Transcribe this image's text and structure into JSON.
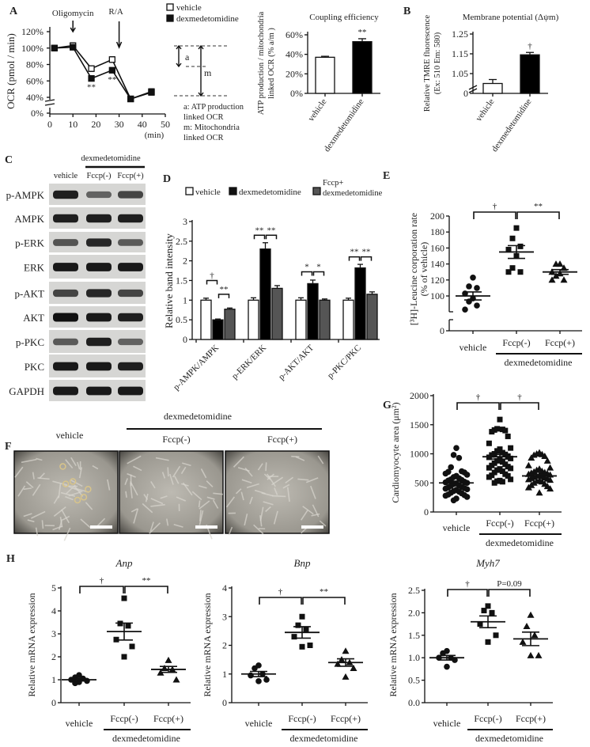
{
  "panel_labels": [
    "A",
    "B",
    "C",
    "D",
    "E",
    "F",
    "G",
    "H"
  ],
  "diagram_A": {
    "a": "a",
    "m": "m",
    "legend": [
      "a: ATP production",
      "linked OCR",
      "m: Mitochondria",
      "linked OCR"
    ]
  },
  "blot_C": {
    "group_label": "dexmedetomidine",
    "lanes": [
      "vehicle",
      "Fccp(-)",
      "Fccp(+)"
    ],
    "rows": [
      {
        "label": "p-AMPK",
        "intensity": [
          0.9,
          0.45,
          0.65
        ]
      },
      {
        "label": "AMPK",
        "intensity": [
          0.9,
          0.9,
          0.9
        ]
      },
      {
        "label": "p-ERK",
        "intensity": [
          0.55,
          0.85,
          0.5
        ]
      },
      {
        "label": "ERK",
        "intensity": [
          0.95,
          0.95,
          0.95
        ]
      },
      {
        "label": "p-AKT",
        "intensity": [
          0.65,
          0.85,
          0.65
        ]
      },
      {
        "label": "AKT",
        "intensity": [
          1.0,
          0.95,
          0.9
        ]
      },
      {
        "label": "p-PKC",
        "intensity": [
          0.5,
          0.9,
          0.45
        ]
      },
      {
        "label": "PKC",
        "intensity": [
          0.95,
          0.95,
          0.9
        ]
      },
      {
        "label": "GAPDH",
        "intensity": [
          0.95,
          0.95,
          0.95
        ]
      }
    ]
  },
  "micrographs_F": {
    "group_label": "dexmedetomidine",
    "panels": [
      "vehicle",
      "Fccp(-)",
      "Fccp(+)"
    ]
  },
  "chart_data": [
    {
      "type": "line",
      "ylabel": "OCR (pmol / min)",
      "xlabel": "(min)",
      "xlim": [
        0,
        50
      ],
      "ylim": [
        0,
        120
      ],
      "axis_break": "between 0% and 40%",
      "x_ticks": [
        "0",
        "10",
        "20",
        "30",
        "40",
        "50"
      ],
      "y_ticks": [
        "0%",
        "40%",
        "60%",
        "80%",
        "100%",
        "120%"
      ],
      "y_tick_values": [
        0,
        40,
        60,
        80,
        100,
        120
      ],
      "series": [
        {
          "name": "vehicle",
          "marker": "open-square",
          "x": [
            2,
            10,
            18,
            27,
            35,
            44
          ],
          "y": [
            100,
            103,
            75,
            86,
            36,
            47
          ],
          "err": [
            4,
            4,
            4,
            4,
            3,
            4
          ]
        },
        {
          "name": "dexmedetomidine",
          "marker": "filled-square",
          "x": [
            2,
            10,
            18,
            27,
            35,
            44
          ],
          "y": [
            100,
            101,
            63,
            73,
            36,
            46
          ],
          "err": [
            3,
            3,
            2,
            2,
            3,
            3
          ]
        }
      ],
      "annotations": [
        {
          "text": "Oligomycin",
          "x": 10
        },
        {
          "text": "R/A",
          "x": 30
        },
        {
          "text": "**",
          "x": 18,
          "y": 55
        },
        {
          "text": "**",
          "x": 27,
          "y": 64
        }
      ]
    },
    {
      "type": "bar",
      "title": "Coupling efficiency",
      "ylabel": [
        "ATP production / mitochondria",
        "linked OCR (% a/m )"
      ],
      "categories": [
        "vehicle",
        "dexmedetomidine"
      ],
      "values": [
        37,
        53
      ],
      "err": [
        1,
        3
      ],
      "colors": [
        "#ffffff",
        "#000000"
      ],
      "ylim": [
        0,
        60
      ],
      "y_ticks": [
        "0%",
        "20%",
        "40%",
        "60%"
      ],
      "y_tick_values": [
        0,
        20,
        40,
        60
      ],
      "annotations": [
        {
          "category": 1,
          "text": "**"
        }
      ]
    },
    {
      "type": "bar",
      "title": "Membrane potential (Δψm)",
      "ylabel": [
        "Relative TMRE fluorescence",
        "(Ex: 510  Em: 580)"
      ],
      "categories": [
        "vehicle",
        "dexmedetomidine"
      ],
      "values": [
        1.0,
        1.145
      ],
      "err": [
        0.02,
        0.012
      ],
      "colors": [
        "#ffffff",
        "#000000"
      ],
      "ylim": [
        0,
        1.25
      ],
      "axis_break": "between 0 and 1.05",
      "y_ticks": [
        "0",
        "1.05",
        "1.15",
        "1.25"
      ],
      "y_tick_values": [
        0,
        1.05,
        1.15,
        1.25
      ],
      "annotations": [
        {
          "category": 1,
          "text": "†"
        }
      ]
    },
    {
      "type": "bar",
      "ylabel": "Relative band intensity",
      "categories": [
        "p-AMPK/AMPK",
        "p-ERK/ERK",
        "p-AKT/AKT",
        "p-PKC/PKC"
      ],
      "legend": [
        "vehicle",
        "dexmedetomidine",
        "Fccp+",
        "dexmedetomidine"
      ],
      "series": [
        {
          "name": "vehicle",
          "color": "#ffffff",
          "values": [
            1.0,
            1.0,
            1.0,
            1.0
          ],
          "err": [
            0.05,
            0.06,
            0.06,
            0.05
          ]
        },
        {
          "name": "dexmedetomidine",
          "color": "#000000",
          "values": [
            0.5,
            2.3,
            1.42,
            1.82
          ],
          "err": [
            0.02,
            0.16,
            0.09,
            0.09
          ]
        },
        {
          "name": "Fccp+ dexmedetomidine",
          "color": "#555555",
          "values": [
            0.77,
            1.3,
            1.0,
            1.15
          ],
          "err": [
            0.03,
            0.07,
            0.03,
            0.06
          ]
        }
      ],
      "ylim": [
        0,
        3
      ],
      "y_ticks": [
        "0",
        "0.5",
        "1",
        "1.5",
        "2",
        "2.5",
        "3"
      ],
      "y_tick_values": [
        0,
        0.5,
        1,
        1.5,
        2,
        2.5,
        3
      ],
      "brackets": [
        {
          "category": 0,
          "from": 0,
          "to": 1,
          "level": 1.5,
          "text": "†"
        },
        {
          "category": 0,
          "from": 1,
          "to": 2,
          "level": 1.15,
          "text": "**"
        },
        {
          "category": 1,
          "from": 0,
          "to": 1,
          "level": 2.65,
          "text": "**"
        },
        {
          "category": 1,
          "from": 1,
          "to": 2,
          "level": 2.65,
          "text": "**"
        },
        {
          "category": 2,
          "from": 0,
          "to": 1,
          "level": 1.72,
          "text": "*"
        },
        {
          "category": 2,
          "from": 1,
          "to": 2,
          "level": 1.72,
          "text": "*"
        },
        {
          "category": 3,
          "from": 0,
          "to": 1,
          "level": 2.1,
          "text": "**"
        },
        {
          "category": 3,
          "from": 1,
          "to": 2,
          "level": 2.1,
          "text": "**"
        }
      ]
    },
    {
      "type": "scatter",
      "ylabel": [
        "[³H]-Leucine corporation rate",
        "(% of vehicle)"
      ],
      "categories": [
        "vehicle",
        "Fccp(-)",
        "Fccp(+)"
      ],
      "group_label": "dexmedetomidine",
      "markers": [
        "circle",
        "square",
        "triangle"
      ],
      "points": [
        [
          123,
          112,
          110,
          103,
          97,
          93,
          88,
          83
        ],
        [
          185,
          172,
          162,
          158,
          150,
          135,
          130,
          130
        ],
        [
          140,
          140,
          135,
          130,
          128,
          125,
          120,
          120
        ]
      ],
      "means": [
        100,
        155,
        130
      ],
      "sem": [
        5,
        8,
        3
      ],
      "ylim": [
        0,
        200
      ],
      "axis_break": "between 0 and 100",
      "y_ticks": [
        "0",
        "100",
        "120",
        "140",
        "160",
        "180",
        "200"
      ],
      "y_tick_values": [
        0,
        100,
        120,
        140,
        160,
        180,
        200
      ],
      "brackets": [
        {
          "from": 0,
          "to": 1,
          "text": "†"
        },
        {
          "from": 1,
          "to": 2,
          "text": "**"
        }
      ]
    },
    {
      "type": "scatter",
      "ylabel": "Cardiomyocyte area (μm²)",
      "categories": [
        "vehicle",
        "Fccp(-)",
        "Fccp(+)"
      ],
      "group_label": "dexmedetomidine",
      "markers": [
        "circle",
        "square",
        "triangle"
      ],
      "points": [
        [
          1100,
          980,
          930,
          770,
          700,
          690,
          680,
          660,
          640,
          620,
          600,
          580,
          560,
          550,
          540,
          520,
          510,
          500,
          490,
          480,
          460,
          450,
          430,
          420,
          410,
          400,
          390,
          380,
          360,
          350,
          330,
          320,
          300,
          290,
          280,
          260,
          230,
          200
        ],
        [
          1590,
          1430,
          1420,
          1410,
          1400,
          1380,
          1300,
          1180,
          1100,
          1080,
          1050,
          1020,
          1000,
          990,
          980,
          960,
          940,
          920,
          900,
          880,
          860,
          840,
          820,
          800,
          780,
          760,
          750,
          740,
          720,
          700,
          680,
          650,
          630,
          620,
          600,
          560,
          540,
          530,
          520,
          500
        ],
        [
          1020,
          1000,
          990,
          980,
          960,
          930,
          880,
          800,
          760,
          740,
          720,
          700,
          690,
          680,
          670,
          660,
          650,
          640,
          630,
          620,
          610,
          600,
          590,
          580,
          570,
          560,
          550,
          540,
          530,
          520,
          500,
          480,
          460,
          440,
          420,
          400,
          330
        ]
      ],
      "means": [
        500,
        950,
        620
      ],
      "sem": [
        30,
        40,
        25
      ],
      "ylim": [
        0,
        2000
      ],
      "y_ticks": [
        "0",
        "500",
        "1000",
        "1500",
        "2000"
      ],
      "y_tick_values": [
        0,
        500,
        1000,
        1500,
        2000
      ],
      "brackets": [
        {
          "from": 0,
          "to": 1,
          "text": "†"
        },
        {
          "from": 1,
          "to": 2,
          "text": "†"
        }
      ]
    },
    {
      "type": "scatter",
      "title": "Anp",
      "ylabel": "Relative mRNA expression",
      "categories": [
        "vehicle",
        "Fccp(-)",
        "Fccp(+)"
      ],
      "group_label": "dexmedetomidine",
      "markers": [
        "circle",
        "square",
        "triangle"
      ],
      "points": [
        [
          1.2,
          1.1,
          1.05,
          1.0,
          0.95,
          0.9,
          0.85
        ],
        [
          4.55,
          3.45,
          3.35,
          2.75,
          2.45,
          2.0
        ],
        [
          1.85,
          1.5,
          1.45,
          1.3,
          1.0
        ]
      ],
      "means": [
        1.0,
        3.1,
        1.45
      ],
      "sem": [
        0.05,
        0.37,
        0.13
      ],
      "ylim": [
        0,
        5
      ],
      "y_ticks": [
        "0",
        "1",
        "2",
        "3",
        "4",
        "5"
      ],
      "y_tick_values": [
        0,
        1,
        2,
        3,
        4,
        5
      ],
      "brackets": [
        {
          "from": 0,
          "to": 1,
          "text": "†"
        },
        {
          "from": 1,
          "to": 2,
          "text": "**"
        }
      ]
    },
    {
      "type": "scatter",
      "title": "Bnp",
      "ylabel": "Relative mRNA expression",
      "categories": [
        "vehicle",
        "Fccp(-)",
        "Fccp(+)"
      ],
      "group_label": "dexmedetomidine",
      "markers": [
        "circle",
        "square",
        "triangle"
      ],
      "points": [
        [
          1.3,
          1.2,
          1.0,
          0.95,
          0.8,
          0.75
        ],
        [
          3.0,
          2.7,
          2.55,
          2.3,
          2.0,
          1.95
        ],
        [
          1.8,
          1.5,
          1.4,
          1.35,
          1.2,
          0.9
        ]
      ],
      "means": [
        1.0,
        2.45,
        1.4
      ],
      "sem": [
        0.09,
        0.2,
        0.13
      ],
      "ylim": [
        0,
        4
      ],
      "y_ticks": [
        "0",
        "1",
        "2",
        "3",
        "4"
      ],
      "y_tick_values": [
        0,
        1,
        2,
        3,
        4
      ],
      "brackets": [
        {
          "from": 0,
          "to": 1,
          "text": "†"
        },
        {
          "from": 1,
          "to": 2,
          "text": "**"
        }
      ]
    },
    {
      "type": "scatter",
      "title": "Myh7",
      "ylabel": "Relative mRNA expression",
      "categories": [
        "vehicle",
        "Fccp(-)",
        "Fccp(+)"
      ],
      "group_label": "dexmedetomidine",
      "markers": [
        "circle",
        "square",
        "triangle"
      ],
      "points": [
        [
          1.15,
          1.1,
          1.0,
          1.0,
          0.95,
          0.8
        ],
        [
          2.15,
          2.05,
          2.0,
          1.75,
          1.5,
          1.35
        ],
        [
          1.95,
          1.7,
          1.5,
          1.35,
          1.05,
          1.05
        ]
      ],
      "means": [
        1.0,
        1.8,
        1.42
      ],
      "sem": [
        0.05,
        0.13,
        0.15
      ],
      "ylim": [
        0,
        2.5
      ],
      "y_ticks": [
        "0.0",
        "0.5",
        "1.0",
        "1.5",
        "2.0",
        "2.5"
      ],
      "y_tick_values": [
        0,
        0.5,
        1,
        1.5,
        2,
        2.5
      ],
      "brackets": [
        {
          "from": 0,
          "to": 1,
          "text": "†"
        },
        {
          "from": 1,
          "to": 2,
          "text": "P=0.09"
        }
      ]
    }
  ]
}
